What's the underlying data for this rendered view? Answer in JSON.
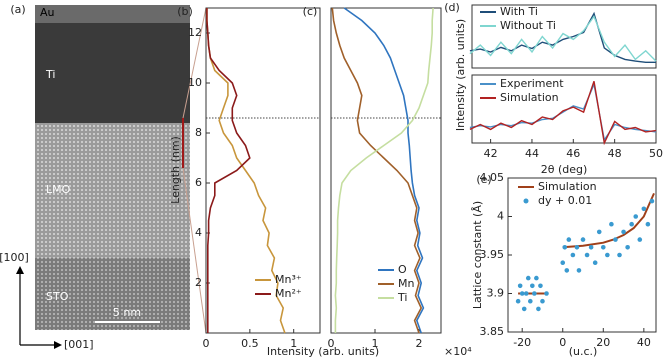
{
  "chart_data": [
    {
      "type": "micrograph",
      "panel_label": "(a)",
      "layers": [
        "Au",
        "Ti",
        "LMO",
        "STO"
      ],
      "scale_bar": "5 nm",
      "axis_labels": [
        "[100]",
        "[001]"
      ]
    },
    {
      "type": "profile",
      "panel_label": "(b)",
      "ylabel": "Length (nm)",
      "xlabel": "Intensity (arb. units)",
      "y": [
        0,
        0.5,
        1,
        1.5,
        2,
        2.5,
        3,
        3.5,
        4,
        4.5,
        5,
        5.5,
        6,
        6.5,
        7,
        7.5,
        8,
        8.5,
        9,
        9.5,
        10,
        10.5,
        11,
        11.5,
        12,
        12.5,
        13
      ],
      "series": [
        {
          "name": "Mn³⁺",
          "color": "#c8963c",
          "values": [
            0.9,
            0.85,
            0.88,
            0.8,
            0.82,
            0.75,
            0.78,
            0.7,
            0.72,
            0.65,
            0.68,
            0.6,
            0.55,
            0.45,
            0.35,
            0.3,
            0.2,
            0.15,
            0.2,
            0.25,
            0.25,
            0.1,
            0.05,
            0.03,
            0.02,
            0.01,
            0.01
          ]
        },
        {
          "name": "Mn²⁺",
          "color": "#8b1a1a",
          "values": [
            0.02,
            0.02,
            0.02,
            0.02,
            0.02,
            0.02,
            0.02,
            0.02,
            0.03,
            0.03,
            0.05,
            0.1,
            0.1,
            0.35,
            0.5,
            0.45,
            0.35,
            0.3,
            0.3,
            0.35,
            0.3,
            0.15,
            0.05,
            0.03,
            0.02,
            0.01,
            0.01
          ]
        }
      ],
      "xlim": [
        0,
        1.3
      ],
      "xticks": [
        0,
        0.5,
        1
      ],
      "ylim": [
        0,
        13
      ],
      "yticks": [
        2,
        4,
        6,
        8,
        10,
        12
      ],
      "hline": 8.6,
      "legend": "lower right"
    },
    {
      "type": "profile",
      "panel_label": "(c)",
      "x_multiplier": "×10⁴",
      "y": [
        0,
        0.5,
        1,
        1.5,
        2,
        2.5,
        3,
        3.5,
        4,
        4.5,
        5,
        5.5,
        6,
        6.5,
        7,
        7.5,
        8,
        8.5,
        9,
        9.5,
        10,
        10.5,
        11,
        11.5,
        12,
        12.5,
        13
      ],
      "series": [
        {
          "name": "O",
          "color": "#2f75c0",
          "values": [
            2.05,
            1.95,
            2.1,
            1.98,
            2.05,
            1.95,
            2.08,
            1.97,
            2.02,
            1.95,
            2.0,
            1.9,
            1.85,
            1.82,
            1.8,
            1.78,
            1.75,
            1.75,
            1.7,
            1.65,
            1.55,
            1.45,
            1.35,
            1.2,
            1.0,
            0.7,
            0.3
          ]
        },
        {
          "name": "Mn",
          "color": "#a0602a",
          "values": [
            2.0,
            1.9,
            2.05,
            1.92,
            2.0,
            1.9,
            2.02,
            1.9,
            1.98,
            1.9,
            1.95,
            1.85,
            1.75,
            1.5,
            1.2,
            0.9,
            0.65,
            0.6,
            0.65,
            0.7,
            0.6,
            0.45,
            0.3,
            0.2,
            0.12,
            0.06,
            0.03
          ]
        },
        {
          "name": "Ti",
          "color": "#c5dea0",
          "values": [
            0.1,
            0.1,
            0.12,
            0.1,
            0.12,
            0.12,
            0.13,
            0.14,
            0.15,
            0.15,
            0.17,
            0.2,
            0.25,
            0.45,
            0.8,
            1.2,
            1.6,
            1.85,
            2.0,
            2.1,
            2.2,
            2.22,
            2.25,
            2.28,
            2.3,
            2.3,
            2.32
          ]
        }
      ],
      "xlim": [
        0,
        2.5
      ],
      "xticks": [
        0,
        1,
        2
      ],
      "ylim": [
        0,
        13
      ],
      "hline": 8.6,
      "legend": "lower right"
    },
    {
      "type": "line",
      "panel_label": "(d)",
      "x": [
        41,
        41.5,
        42,
        42.5,
        43,
        43.5,
        44,
        44.5,
        45,
        45.5,
        46,
        46.5,
        47,
        47.5,
        48,
        48.5,
        49,
        49.5,
        50
      ],
      "series": [
        {
          "name": "With Ti",
          "color": "#1f4e79",
          "values": [
            0.3,
            0.33,
            0.28,
            0.36,
            0.3,
            0.4,
            0.34,
            0.45,
            0.4,
            0.5,
            0.55,
            0.62,
            0.95,
            0.35,
            0.22,
            0.15,
            0.12,
            0.1,
            0.1
          ]
        },
        {
          "name": "Without Ti",
          "color": "#7fd6d0",
          "values": [
            0.25,
            0.4,
            0.22,
            0.45,
            0.25,
            0.5,
            0.28,
            0.55,
            0.35,
            0.6,
            0.5,
            0.65,
            0.9,
            0.45,
            0.2,
            0.4,
            0.15,
            0.3,
            0.12
          ]
        }
      ],
      "xlim": [
        41.1,
        50
      ],
      "ylim": [
        0,
        1.1
      ],
      "legend": "upper left"
    },
    {
      "type": "line",
      "ylabel": "Intensity (arb. units)",
      "xlabel": "2θ (deg)",
      "x": [
        41,
        41.5,
        42,
        42.5,
        43,
        43.5,
        44,
        44.5,
        45,
        45.5,
        46,
        46.5,
        47,
        47.5,
        48,
        48.5,
        49,
        49.5,
        50
      ],
      "series": [
        {
          "name": "Experiment",
          "color": "#4a90c8",
          "values": [
            0.25,
            0.28,
            0.26,
            0.3,
            0.28,
            0.33,
            0.32,
            0.38,
            0.4,
            0.5,
            0.6,
            0.55,
            0.95,
            0.05,
            0.3,
            0.25,
            0.22,
            0.2,
            0.18
          ]
        },
        {
          "name": "Simulation",
          "color": "#b22222",
          "values": [
            0.22,
            0.3,
            0.22,
            0.32,
            0.25,
            0.36,
            0.3,
            0.42,
            0.38,
            0.52,
            0.58,
            0.5,
            1.0,
            0.0,
            0.35,
            0.22,
            0.25,
            0.18,
            0.2
          ]
        }
      ],
      "xlim": [
        41.1,
        50
      ],
      "xticks": [
        42,
        44,
        46,
        48,
        50
      ],
      "ylim": [
        0,
        1.1
      ],
      "legend": "upper left"
    },
    {
      "type": "scatter",
      "panel_label": "(e)",
      "ylabel": "Lattice constant (Å)",
      "xlabel": "(u.c.)",
      "series": [
        {
          "name": "Simulation",
          "color": "#a0401a",
          "kind": "line",
          "x": [
            -22,
            -8,
            -4,
            0,
            10,
            20,
            25,
            30,
            35,
            40,
            45
          ],
          "values": [
            3.9,
            3.9,
            null,
            3.96,
            3.962,
            3.966,
            3.97,
            3.976,
            3.985,
            4.0,
            4.03
          ]
        },
        {
          "name": "dy + 0.01",
          "color": "#3a9ad0",
          "kind": "points",
          "x": [
            -22,
            -21,
            -20,
            -19,
            -18,
            -17,
            -16,
            -15,
            -14,
            -13,
            -12,
            -11,
            -10,
            -8,
            0,
            1,
            2,
            3,
            5,
            7,
            8,
            10,
            12,
            14,
            16,
            18,
            20,
            22,
            24,
            26,
            28,
            30,
            32,
            34,
            36,
            38,
            40,
            42,
            44
          ],
          "values": [
            3.89,
            3.91,
            3.9,
            3.88,
            3.9,
            3.92,
            3.89,
            3.91,
            3.9,
            3.92,
            3.88,
            3.91,
            3.89,
            3.9,
            3.94,
            3.96,
            3.93,
            3.97,
            3.95,
            3.96,
            3.93,
            3.97,
            3.95,
            3.96,
            3.94,
            3.98,
            3.96,
            3.95,
            3.99,
            3.97,
            3.95,
            3.98,
            3.96,
            3.99,
            4.0,
            3.97,
            4.01,
            3.99,
            4.02
          ]
        }
      ],
      "xlim": [
        -27,
        46
      ],
      "xticks": [
        -20,
        0,
        20,
        40
      ],
      "ylim": [
        3.85,
        4.05
      ],
      "yticks": [
        3.85,
        3.9,
        3.95,
        4,
        4.05
      ],
      "legend": "upper left"
    }
  ]
}
